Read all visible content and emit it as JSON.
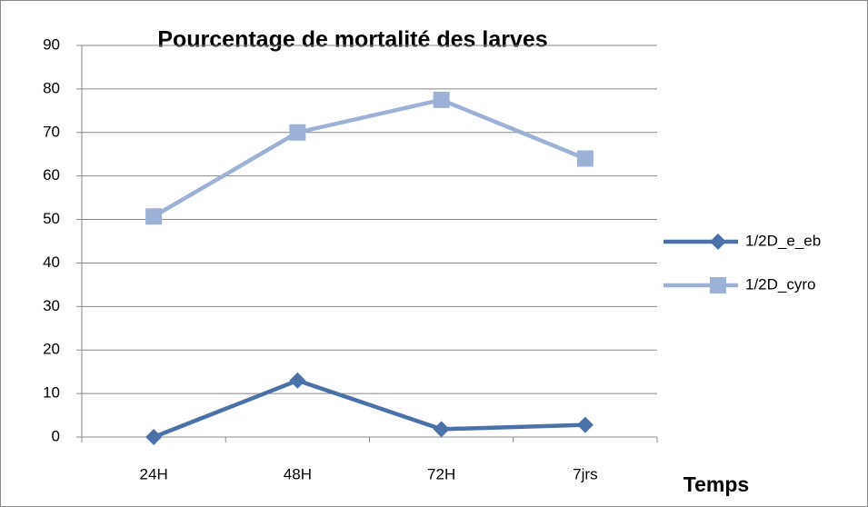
{
  "chart_data": {
    "type": "line",
    "title": "Pourcentage de mortalité des larves",
    "x_label": "Temps",
    "categories": [
      "24H",
      "48H",
      "72H",
      "7jrs"
    ],
    "series": [
      {
        "name": "1/2D_e_eb",
        "color": "#4a71a8",
        "marker": "diamond",
        "values": [
          0,
          13,
          1.8,
          2.8
        ]
      },
      {
        "name": "1/2D_cyro",
        "color": "#9bb1d5",
        "marker": "square",
        "values": [
          50.7,
          70,
          77.5,
          64
        ]
      }
    ],
    "ylim": [
      0,
      90
    ],
    "yticks": [
      0,
      10,
      20,
      30,
      40,
      50,
      60,
      70,
      80,
      90
    ],
    "grid": true,
    "legend": "right"
  }
}
